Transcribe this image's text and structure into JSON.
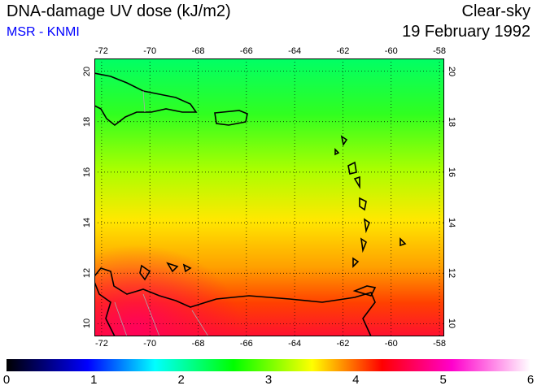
{
  "header": {
    "title": "DNA-damage UV dose (kJ/m2)",
    "source": "MSR - KNMI",
    "sky": "Clear-sky",
    "date": "19 February 1992"
  },
  "map": {
    "lon_ticks": [
      "-72",
      "-70",
      "-68",
      "-66",
      "-64",
      "-62",
      "-60",
      "-58"
    ],
    "lat_ticks": [
      "20",
      "18",
      "16",
      "14",
      "12",
      "10"
    ],
    "lon_range": [
      -72.3,
      -57.8
    ],
    "lat_range": [
      9.5,
      20.5
    ]
  },
  "colorbar": {
    "labels": [
      "0",
      "1",
      "2",
      "3",
      "4",
      "5",
      "6"
    ],
    "range": [
      0,
      6
    ],
    "stops": [
      {
        "v": 0,
        "c": "#000000"
      },
      {
        "v": 0.93,
        "c": "#0000ff"
      },
      {
        "v": 1.7,
        "c": "#00ffff"
      },
      {
        "v": 2.6,
        "c": "#00ff00"
      },
      {
        "v": 3.5,
        "c": "#ffff00"
      },
      {
        "v": 4.3,
        "c": "#ff0000"
      },
      {
        "v": 5.1,
        "c": "#ff00cc"
      },
      {
        "v": 6,
        "c": "#ffffff"
      }
    ]
  }
}
